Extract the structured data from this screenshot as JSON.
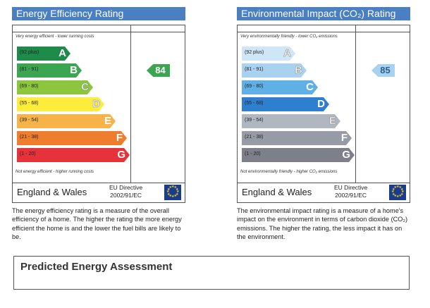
{
  "efficiency": {
    "title": "Energy Efficiency Rating",
    "header_color": "#4a7fc1",
    "top_note": "Very energy efficient - lower running costs",
    "bottom_note": "Not energy efficient - higher running costs",
    "bands": [
      {
        "range": "(92 plus)",
        "letter": "A",
        "color": "#1e8b4b",
        "outline": false
      },
      {
        "range": "(81 - 91)",
        "letter": "B",
        "color": "#3ba552",
        "outline": false
      },
      {
        "range": "(69 - 80)",
        "letter": "C",
        "color": "#8cc63f",
        "outline": true
      },
      {
        "range": "(55 - 68)",
        "letter": "D",
        "color": "#ffec3c",
        "outline": true
      },
      {
        "range": "(39 - 54)",
        "letter": "E",
        "color": "#f6b34a",
        "outline": false
      },
      {
        "range": "(21 - 38)",
        "letter": "F",
        "color": "#ee7d2e",
        "outline": false
      },
      {
        "range": "(1 - 20)",
        "letter": "G",
        "color": "#e5323b",
        "outline": false
      }
    ],
    "current_rating": "84",
    "current_band": "B",
    "rating_color": "#3ba552",
    "footer_region": "England & Wales",
    "directive_line1": "EU Directive",
    "directive_line2": "2002/91/EC",
    "description": "The energy efficiency rating is a measure of the overall efficiency of a home. The higher the rating the more energy efficient the home is and the lower the fuel bills are likely to be."
  },
  "environment": {
    "title": "Environmental Impact (CO₂) Rating",
    "header_color": "#4a7fc1",
    "top_note": "Very environmentally friendly - lower CO₂ emissions",
    "bottom_note": "Not environmentally friendly - higher CO₂ emissions",
    "bands": [
      {
        "range": "(92 plus)",
        "letter": "A",
        "color": "#cfe6f7",
        "outline": true
      },
      {
        "range": "(81 - 91)",
        "letter": "B",
        "color": "#a9d2f0",
        "outline": true
      },
      {
        "range": "(69 - 80)",
        "letter": "C",
        "color": "#5fb0e5",
        "outline": false
      },
      {
        "range": "(55 - 68)",
        "letter": "D",
        "color": "#2f7fcf",
        "outline": false
      },
      {
        "range": "(39 - 54)",
        "letter": "E",
        "color": "#b1b7c1",
        "outline": true
      },
      {
        "range": "(21 - 38)",
        "letter": "F",
        "color": "#979ba6",
        "outline": false
      },
      {
        "range": "(1 - 20)",
        "letter": "G",
        "color": "#7d8089",
        "outline": false
      }
    ],
    "current_rating": "85",
    "current_band": "B",
    "rating_color": "#a9d2f0",
    "footer_region": "England & Wales",
    "directive_line1": "EU Directive",
    "directive_line2": "2002/91/EC",
    "description": "The environmental impact rating is a measure of a home's impact on the environment in terms of carbon dioxide (CO₂) emissions. The higher the rating, the less impact it has on the environment."
  },
  "predicted": {
    "title": "Predicted Energy Assessment"
  },
  "icons": {
    "eu_flag": "eu-flag-icon"
  }
}
